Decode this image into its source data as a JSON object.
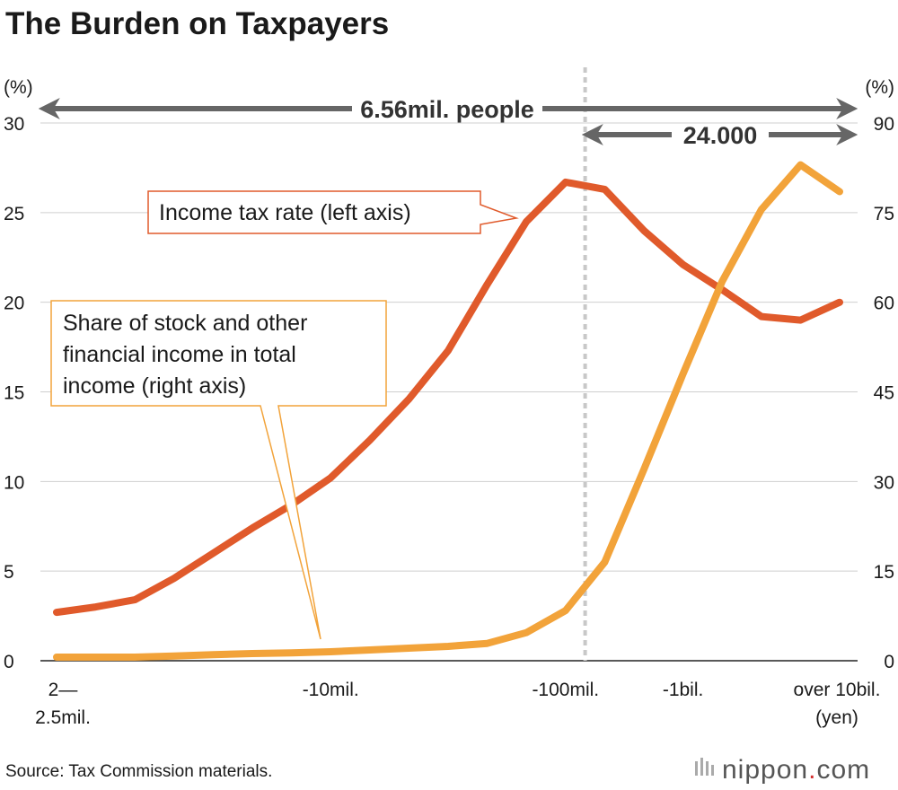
{
  "title": "The Burden on Taxpayers",
  "source": "Source: Tax Commission materials.",
  "brand": {
    "pre": "nippon",
    "dot": ".",
    "post": "com",
    "dot_color": "#d32f2f"
  },
  "arrows": {
    "all_label": "6.56mil. people",
    "top_label": "24.000"
  },
  "callouts": {
    "tax_rate": "Income tax rate (left axis)",
    "stock_share_lines": [
      "Share of stock and other",
      "financial income in total",
      "income (right axis)"
    ]
  },
  "chart_data": {
    "type": "line",
    "y_left": {
      "unit": "(%)",
      "lim": [
        0,
        30
      ],
      "ticks": [
        "0",
        "5",
        "10",
        "15",
        "20",
        "25",
        "30"
      ]
    },
    "y_right": {
      "unit": "(%)",
      "lim": [
        0,
        90
      ],
      "ticks": [
        "0",
        "15",
        "30",
        "45",
        "60",
        "75",
        "90"
      ]
    },
    "x_tick_labels": [
      {
        "index": 0,
        "lines": [
          "2—",
          "2.5mil."
        ]
      },
      {
        "index": 7,
        "lines": [
          "-10mil."
        ]
      },
      {
        "index": 13,
        "lines": [
          "-100mil."
        ]
      },
      {
        "index": 16,
        "lines": [
          "-1bil."
        ]
      },
      {
        "index": 20,
        "lines": [
          "over 10bil.",
          "(yen)"
        ]
      }
    ],
    "divider_index": 13.5,
    "grid": true,
    "series": [
      {
        "name": "Income tax rate (left axis)",
        "axis": "left",
        "color": "#e05a2b",
        "values": [
          2.7,
          3.0,
          3.4,
          4.6,
          6.0,
          7.4,
          8.7,
          10.2,
          12.3,
          14.6,
          17.3,
          21.0,
          24.5,
          26.7,
          26.3,
          24.0,
          22.1,
          20.7,
          19.2,
          19.0,
          20.0
        ]
      },
      {
        "name": "Share of stock and other financial income in total income (right axis)",
        "axis": "right",
        "color": "#f2a33a",
        "values": [
          0.6,
          0.6,
          0.6,
          0.8,
          1.0,
          1.2,
          1.3,
          1.5,
          1.8,
          2.1,
          2.4,
          2.9,
          4.7,
          8.4,
          16.5,
          32,
          48,
          63.5,
          75.5,
          83,
          78.5
        ]
      }
    ]
  }
}
